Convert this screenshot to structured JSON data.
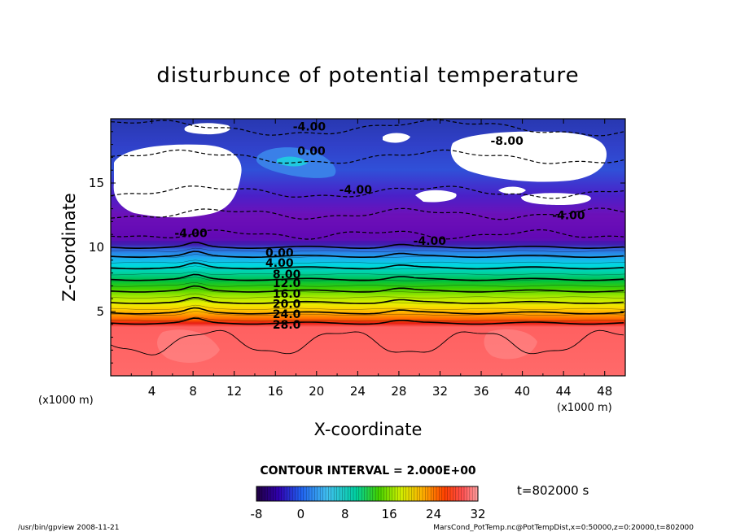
{
  "chart_data": {
    "type": "heatmap",
    "title": "disturbunce of potential temperature",
    "xlabel": "X-coordinate",
    "ylabel": "Z-coordinate",
    "x_unit": "(x1000 m)",
    "y_unit": "(x1000 m)",
    "xlim": [
      0,
      50
    ],
    "ylim": [
      0,
      20
    ],
    "x_ticks": [
      "4",
      "8",
      "12",
      "16",
      "20",
      "24",
      "28",
      "32",
      "36",
      "40",
      "44",
      "48"
    ],
    "y_ticks": [
      "5",
      "10",
      "15"
    ],
    "contour_interval": "CONTOUR INTERVAL = 2.000E+00",
    "time_label": "t=802000 s",
    "colorbar": {
      "min": -8,
      "max": 32,
      "ticks": [
        "-8",
        "0",
        "8",
        "16",
        "24",
        "32"
      ]
    },
    "stratified_levels": [
      {
        "z": 10.0,
        "value": 0
      },
      {
        "z": 9.3,
        "value": 4
      },
      {
        "z": 8.4,
        "value": 8
      },
      {
        "z": 7.5,
        "value": 12
      },
      {
        "z": 6.6,
        "value": 16
      },
      {
        "z": 5.7,
        "value": 20
      },
      {
        "z": 4.9,
        "value": 24
      },
      {
        "z": 4.1,
        "value": 28
      }
    ],
    "contour_labels": [
      {
        "text": "-4.00",
        "x": 19.3,
        "z": 19.4
      },
      {
        "text": "0.00",
        "x": 19.5,
        "z": 17.5
      },
      {
        "text": "-8.00",
        "x": 38.5,
        "z": 18.3
      },
      {
        "text": "-4.00",
        "x": 23.8,
        "z": 14.5
      },
      {
        "text": "-4.00",
        "x": 44.5,
        "z": 12.5
      },
      {
        "text": "-4.00",
        "x": 7.8,
        "z": 11.1
      },
      {
        "text": "-4.00",
        "x": 31.0,
        "z": 10.5
      },
      {
        "text": "0.00",
        "x": 16.4,
        "z": 9.6
      },
      {
        "text": "4.00",
        "x": 16.4,
        "z": 8.8
      },
      {
        "text": "8.00",
        "x": 17.1,
        "z": 7.9
      },
      {
        "text": "12.0",
        "x": 17.1,
        "z": 7.2
      },
      {
        "text": "16.0",
        "x": 17.1,
        "z": 6.4
      },
      {
        "text": "20.0",
        "x": 17.1,
        "z": 5.6
      },
      {
        "text": "24.0",
        "x": 17.1,
        "z": 4.8
      },
      {
        "text": "28.0",
        "x": 17.1,
        "z": 4.0
      }
    ]
  },
  "footer": {
    "left": "/usr/bin/gpview   2008-11-21",
    "right": "MarsCond_PotTemp.nc@PotTempDist,x=0:50000,z=0:20000,t=802000"
  },
  "colors": {
    "high": "#ff6464",
    "mid": "#00c800",
    "low": "#4000a0"
  }
}
